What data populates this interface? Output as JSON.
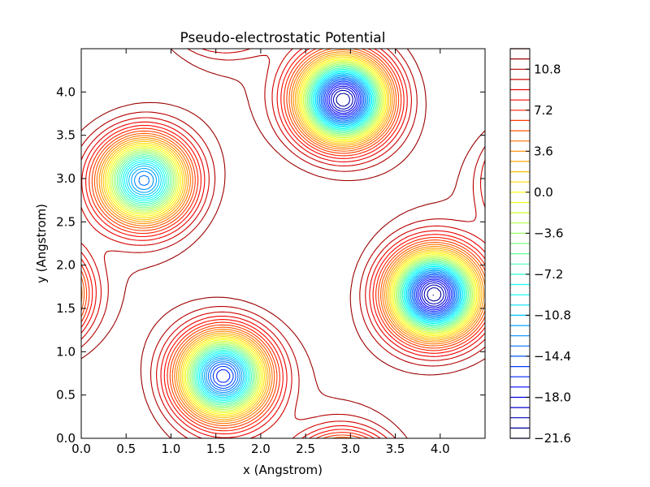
{
  "chart_data": {
    "type": "contour",
    "title": "Pseudo-electrostatic Potential",
    "xlabel": "x (Angstrom)",
    "ylabel": "y (Angstrom)",
    "xlim": [
      0.0,
      4.5
    ],
    "ylim": [
      0.0,
      4.5
    ],
    "x_ticks": [
      "0.0",
      "0.5",
      "1.0",
      "1.5",
      "2.0",
      "2.5",
      "3.0",
      "3.5",
      "4.0"
    ],
    "y_ticks": [
      "0.0",
      "0.5",
      "1.0",
      "1.5",
      "2.0",
      "2.5",
      "3.0",
      "3.5",
      "4.0"
    ],
    "colorbar": {
      "range": [
        -21.6,
        12.6
      ],
      "ticks": [
        "10.8",
        "7.2",
        "3.6",
        "0.0",
        "−3.6",
        "−7.2",
        "−10.8",
        "−14.4",
        "−18.0",
        "−21.6"
      ],
      "colormap": "jet"
    },
    "wells": [
      {
        "x": 0.7,
        "y": 2.98,
        "min": -14.0
      },
      {
        "x": 2.92,
        "y": 3.91,
        "min": -21.6
      },
      {
        "x": 3.93,
        "y": 1.66,
        "min": -21.6
      },
      {
        "x": 1.58,
        "y": 0.72,
        "min": -17.0
      }
    ],
    "level_step": 0.9,
    "grid": false
  }
}
